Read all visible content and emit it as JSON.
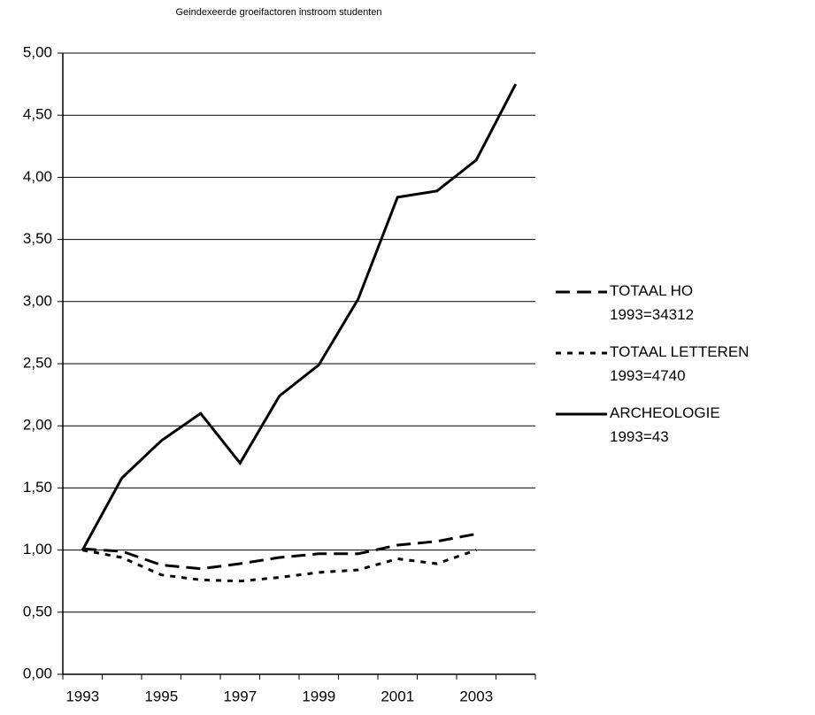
{
  "chart_data": {
    "type": "line",
    "title": "Geindexeerde groeifactoren instroom studenten",
    "categories": [
      "1993",
      null,
      "1995",
      null,
      "1997",
      null,
      "1999",
      null,
      "2001",
      null,
      "2003",
      null
    ],
    "series": [
      {
        "name": "TOTAAL HO\n1993=34312",
        "color": "#000000",
        "style": "dashed",
        "values": [
          1.01,
          0.99,
          0.88,
          0.85,
          0.89,
          0.94,
          0.97,
          0.97,
          1.04,
          1.07,
          1.13,
          null
        ]
      },
      {
        "name": "TOTAAL LETTEREN\n1993=4740",
        "color": "#000000",
        "style": "dotted",
        "values": [
          1.0,
          0.94,
          0.8,
          0.76,
          0.75,
          0.78,
          0.82,
          0.84,
          0.93,
          0.89,
          1.0,
          null
        ]
      },
      {
        "name": "ARCHEOLOGIE\n1993=43",
        "color": "#000000",
        "style": "solid",
        "values": [
          1.0,
          1.58,
          1.88,
          2.1,
          1.7,
          2.24,
          2.49,
          3.02,
          3.84,
          3.89,
          4.14,
          4.75
        ]
      }
    ],
    "ylim": [
      0,
      5
    ],
    "yticks": [
      {
        "value": 0,
        "label": "0,00"
      },
      {
        "value": 0.5,
        "label": "0,50"
      },
      {
        "value": 1,
        "label": "1,00"
      },
      {
        "value": 1.5,
        "label": "1,50"
      },
      {
        "value": 2,
        "label": "2,00"
      },
      {
        "value": 2.5,
        "label": "2,50"
      },
      {
        "value": 3,
        "label": "3,00"
      },
      {
        "value": 3.5,
        "label": "3,50"
      },
      {
        "value": 4,
        "label": "4,00"
      },
      {
        "value": 4.5,
        "label": "4,50"
      },
      {
        "value": 5,
        "label": "5,00"
      }
    ],
    "grid": true,
    "legend": "right"
  }
}
